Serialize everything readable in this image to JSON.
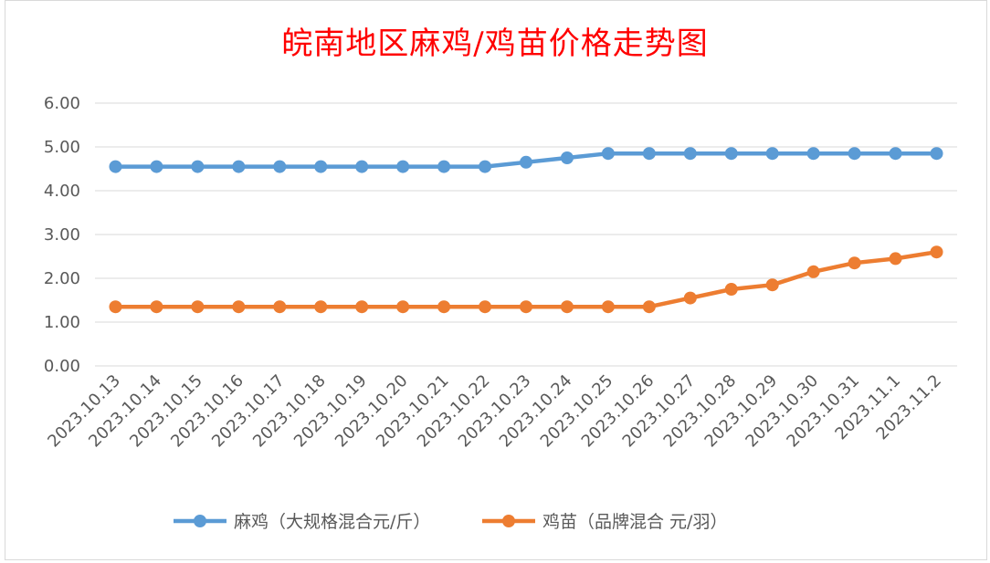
{
  "chart_data": {
    "type": "line",
    "title": "皖南地区麻鸡/鸡苗价格走势图",
    "categories": [
      "2023.10.13",
      "2023.10.14",
      "2023.10.15",
      "2023.10.16",
      "2023.10.17",
      "2023.10.18",
      "2023.10.19",
      "2023.10.20",
      "2023.10.21",
      "2023.10.22",
      "2023.10.23",
      "2023.10.24",
      "2023.10.25",
      "2023.10.26",
      "2023.10.27",
      "2023.10.28",
      "2023.10.29",
      "2023.10.30",
      "2023.10.31",
      "2023.11.1",
      "2023.11.2"
    ],
    "y_ticks": [
      "0.00",
      "1.00",
      "2.00",
      "3.00",
      "4.00",
      "5.00",
      "6.00"
    ],
    "ylim": [
      0,
      6
    ],
    "grid": true,
    "legend_position": "bottom",
    "series": [
      {
        "name": "麻鸡（大规格混合元/斤）",
        "color": "#5b9bd5",
        "values": [
          4.55,
          4.55,
          4.55,
          4.55,
          4.55,
          4.55,
          4.55,
          4.55,
          4.55,
          4.55,
          4.65,
          4.75,
          4.85,
          4.85,
          4.85,
          4.85,
          4.85,
          4.85,
          4.85,
          4.85,
          4.85
        ]
      },
      {
        "name": "鸡苗（品牌混合 元/羽）",
        "color": "#ed7d31",
        "values": [
          1.35,
          1.35,
          1.35,
          1.35,
          1.35,
          1.35,
          1.35,
          1.35,
          1.35,
          1.35,
          1.35,
          1.35,
          1.35,
          1.35,
          1.55,
          1.75,
          1.85,
          2.15,
          2.35,
          2.45,
          2.6
        ]
      }
    ]
  }
}
